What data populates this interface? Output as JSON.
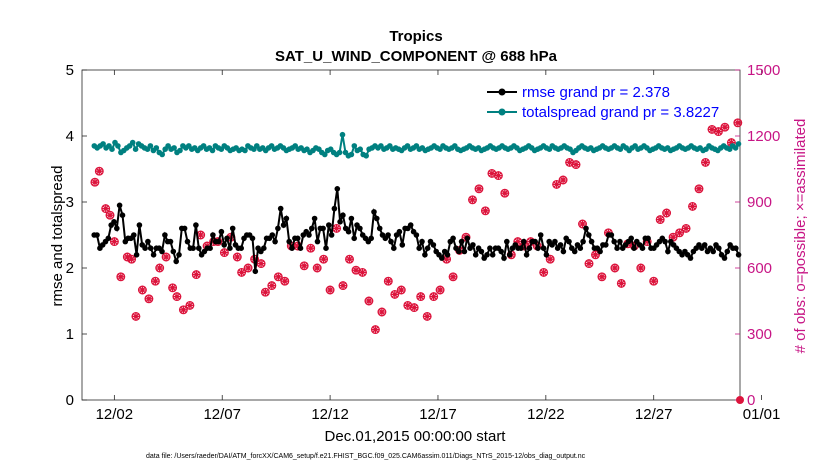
{
  "chart_data": {
    "type": "line",
    "title": "Tropics",
    "subtitle": "SAT_U_WIND_COMPONENT @ 688 hPa",
    "xlabel": "Dec.01,2015 00:00:00 start",
    "ylabel": "rmse and totalspread",
    "y2label": "# of obs: o=possible; ×=assimilated",
    "xlim": [
      0.5,
      31.0
    ],
    "ylim": [
      0,
      5
    ],
    "y2lim": [
      0,
      1500
    ],
    "x_ticks": [
      {
        "value": 2,
        "label": "12/02"
      },
      {
        "value": 7,
        "label": "12/07"
      },
      {
        "value": 12,
        "label": "12/12"
      },
      {
        "value": 17,
        "label": "12/17"
      },
      {
        "value": 22,
        "label": "12/22"
      },
      {
        "value": 27,
        "label": "12/27"
      },
      {
        "value": 32,
        "label": "01/01"
      }
    ],
    "y_ticks": [
      "0",
      "1",
      "2",
      "3",
      "4",
      "5"
    ],
    "y2_ticks": [
      "0",
      "300",
      "600",
      "900",
      "1200",
      "1500"
    ],
    "legend_position": "top-right",
    "footer": "data file: /Users/raeder/DAI/ATM_forcXX/CAM6_setup/f.e21.FHIST_BGC.f09_025.CAM6assim.011/Diags_NTrS_2015-12/obs_diag_output.nc",
    "colors": {
      "rmse": "#000000",
      "spread": "#008080",
      "obs": "#dc143c",
      "legend_text": "#0000ff",
      "right_axis": "#c71585"
    },
    "series": [
      {
        "name": "rmse grand pr = 2.378",
        "values": [
          2.5,
          2.5,
          2.3,
          2.35,
          2.4,
          2.45,
          2.65,
          2.7,
          2.6,
          2.95,
          2.8,
          2.4,
          2.45,
          2.45,
          2.5,
          2.2,
          2.65,
          2.35,
          2.3,
          2.4,
          2.3,
          2.2,
          2.3,
          2.3,
          2.25,
          2.5,
          2.4,
          2.4,
          2.25,
          2.1,
          2.2,
          2.6,
          2.6,
          2.4,
          2.3,
          2.3,
          2.65,
          2.3,
          2.2,
          2.25,
          2.3,
          2.3,
          2.5,
          2.4,
          2.4,
          2.55,
          2.35,
          2.45,
          2.3,
          2.6,
          2.35,
          2.3,
          2.3,
          2.45,
          2.5,
          2.5,
          2.45,
          1.95,
          2.3,
          2.25,
          2.3,
          2.45,
          2.45,
          2.5,
          2.4,
          2.6,
          2.9,
          2.65,
          2.75,
          2.4,
          2.3,
          2.45,
          2.45,
          2.3,
          2.5,
          2.55,
          2.5,
          2.6,
          2.75,
          2.4,
          2.6,
          2.6,
          2.3,
          2.65,
          2.5,
          2.9,
          3.2,
          2.7,
          2.8,
          2.6,
          2.55,
          2.75,
          2.45,
          2.65,
          2.6,
          2.5,
          2.45,
          2.4,
          2.45,
          2.85,
          2.75,
          2.6,
          2.5,
          2.45,
          2.5,
          2.4,
          2.3,
          2.5,
          2.55,
          2.35,
          2.6,
          2.6,
          2.65,
          2.55,
          2.5,
          2.3,
          2.4,
          2.2,
          2.3,
          2.4,
          2.35,
          2.25,
          2.2,
          2.15,
          2.25,
          2.2,
          2.4,
          2.45,
          2.3,
          2.25,
          2.4,
          2.25,
          2.45,
          2.3,
          2.35,
          2.2,
          2.3,
          2.25,
          2.15,
          2.2,
          2.3,
          2.2,
          2.3,
          2.3,
          2.25,
          2.15,
          2.4,
          2.2,
          2.3,
          2.35,
          2.3,
          2.3,
          2.4,
          2.2,
          2.3,
          2.4,
          2.4,
          2.3,
          2.5,
          2.3,
          2.2,
          2.4,
          2.35,
          2.4,
          2.3,
          2.35,
          2.25,
          2.45,
          2.4,
          2.3,
          2.25,
          2.35,
          2.3,
          2.4,
          2.6,
          2.5,
          2.4,
          2.3,
          2.3,
          2.25,
          2.35,
          2.35,
          2.5,
          2.5,
          2.4,
          2.3,
          2.4,
          2.3,
          2.35,
          2.4,
          2.45,
          2.3,
          2.4,
          2.35,
          2.3,
          2.45,
          2.45,
          2.3,
          2.3,
          2.35,
          2.4,
          2.45,
          2.4,
          2.25,
          2.4,
          2.35,
          2.3,
          2.25,
          2.2,
          2.25,
          2.2,
          2.15,
          2.25,
          2.3,
          2.35,
          2.3,
          2.35,
          2.25,
          2.3,
          2.25,
          2.35,
          2.3,
          2.2,
          2.15,
          2.25,
          2.35,
          2.3,
          2.3,
          2.2
        ],
        "color": "#000000"
      },
      {
        "name": "totalspread grand pr = 3.8227",
        "values": [
          3.85,
          3.82,
          3.85,
          3.88,
          3.82,
          3.85,
          3.8,
          3.9,
          3.85,
          3.75,
          3.78,
          3.82,
          3.85,
          3.9,
          3.8,
          3.88,
          3.85,
          3.82,
          3.8,
          3.85,
          3.78,
          3.82,
          3.75,
          3.72,
          3.8,
          3.85,
          3.8,
          3.82,
          3.75,
          3.78,
          3.85,
          3.82,
          3.85,
          3.8,
          3.82,
          3.78,
          3.82,
          3.85,
          3.8,
          3.82,
          3.78,
          3.85,
          3.82,
          3.8,
          3.85,
          3.82,
          3.78,
          3.8,
          3.82,
          3.78,
          3.8,
          3.78,
          3.85,
          3.82,
          3.8,
          3.85,
          3.8,
          3.82,
          3.78,
          3.82,
          3.85,
          3.8,
          3.82,
          3.85,
          3.82,
          3.78,
          3.8,
          3.82,
          3.85,
          3.8,
          3.82,
          3.78,
          3.8,
          3.75,
          3.78,
          3.82,
          3.8,
          3.75,
          3.72,
          3.78,
          3.8,
          3.75,
          3.72,
          3.75,
          4.02,
          3.75,
          3.7,
          3.72,
          3.85,
          3.78,
          3.8,
          3.72,
          3.7,
          3.8,
          3.82,
          3.85,
          3.82,
          3.85,
          3.8,
          3.82,
          3.85,
          3.8,
          3.82,
          3.8,
          3.78,
          3.82,
          3.85,
          3.8,
          3.82,
          3.85,
          3.8,
          3.82,
          3.78,
          3.8,
          3.82,
          3.85,
          3.82,
          3.8,
          3.85,
          3.82,
          3.8,
          3.82,
          3.85,
          3.8,
          3.78,
          3.8,
          3.82,
          3.85,
          3.82,
          3.8,
          3.82,
          3.78,
          3.8,
          3.82,
          3.85,
          3.82,
          3.8,
          3.82,
          3.85,
          3.82,
          3.8,
          3.82,
          3.85,
          3.82,
          3.78,
          3.8,
          3.82,
          3.85,
          3.82,
          3.78,
          3.8,
          3.82,
          3.85,
          3.82,
          3.8,
          3.85,
          3.82,
          3.8,
          3.82,
          3.85,
          3.82,
          3.8,
          3.75,
          3.78,
          3.82,
          3.85,
          3.82,
          3.8,
          3.82,
          3.78,
          3.8,
          3.82,
          3.85,
          3.82,
          3.8,
          3.82,
          3.85,
          3.82,
          3.8,
          3.85,
          3.82,
          3.78,
          3.82,
          3.85,
          3.8,
          3.82,
          3.85,
          3.82,
          3.78,
          3.8,
          3.82,
          3.85,
          3.82,
          3.8,
          3.82,
          3.78,
          3.8,
          3.82,
          3.85,
          3.82,
          3.8,
          3.82,
          3.85,
          3.82,
          3.8,
          3.82,
          3.78,
          3.8,
          3.85,
          3.82,
          3.8,
          3.78,
          3.82,
          3.85,
          3.82,
          3.8,
          3.85,
          3.82,
          3.88
        ],
        "color": "#008080"
      }
    ],
    "obs_series": {
      "name": "# of obs",
      "x": [
        1.1,
        1.3,
        1.6,
        1.8,
        2.0,
        2.3,
        2.6,
        2.8,
        3.0,
        3.3,
        3.6,
        3.9,
        4.1,
        4.4,
        4.7,
        4.9,
        5.2,
        5.5,
        5.8,
        6.0,
        6.3,
        6.6,
        6.8,
        7.1,
        7.4,
        7.7,
        7.9,
        8.2,
        8.5,
        8.8,
        9.0,
        9.3,
        9.6,
        9.9,
        10.2,
        10.5,
        10.8,
        11.1,
        11.4,
        11.7,
        12.0,
        12.3,
        12.6,
        12.9,
        13.2,
        13.5,
        13.8,
        14.1,
        14.4,
        14.7,
        15.0,
        15.3,
        15.6,
        15.9,
        16.2,
        16.5,
        16.8,
        17.1,
        17.4,
        17.7,
        18.0,
        18.3,
        18.6,
        18.9,
        19.2,
        19.5,
        19.8,
        20.1,
        20.4,
        20.7,
        21.0,
        21.3,
        21.6,
        21.9,
        22.2,
        22.5,
        22.8,
        23.1,
        23.4,
        23.7,
        24.0,
        24.3,
        24.6,
        24.9,
        25.2,
        25.5,
        25.8,
        26.1,
        26.4,
        26.7,
        27.0,
        27.3,
        27.6,
        27.9,
        28.2,
        28.5,
        28.8,
        29.1,
        29.4,
        29.7,
        30.0,
        30.3,
        30.6,
        30.9
      ],
      "values": [
        990,
        1040,
        870,
        840,
        720,
        560,
        650,
        640,
        380,
        500,
        460,
        540,
        600,
        650,
        510,
        470,
        410,
        430,
        570,
        750,
        700,
        720,
        720,
        670,
        740,
        650,
        580,
        600,
        640,
        620,
        490,
        520,
        560,
        540,
        700,
        700,
        610,
        690,
        600,
        640,
        500,
        780,
        520,
        640,
        590,
        580,
        450,
        320,
        400,
        540,
        480,
        500,
        430,
        420,
        470,
        380,
        470,
        500,
        640,
        560,
        680,
        740,
        910,
        960,
        860,
        1030,
        1020,
        940,
        660,
        720,
        700,
        720,
        700,
        580,
        640,
        980,
        1000,
        1080,
        1070,
        800,
        620,
        660,
        560,
        760,
        600,
        530,
        710,
        700,
        600,
        720,
        540,
        820,
        850,
        740,
        760,
        780,
        880,
        960,
        1080,
        1230,
        1220,
        1240,
        1170,
        1260
      ]
    }
  }
}
